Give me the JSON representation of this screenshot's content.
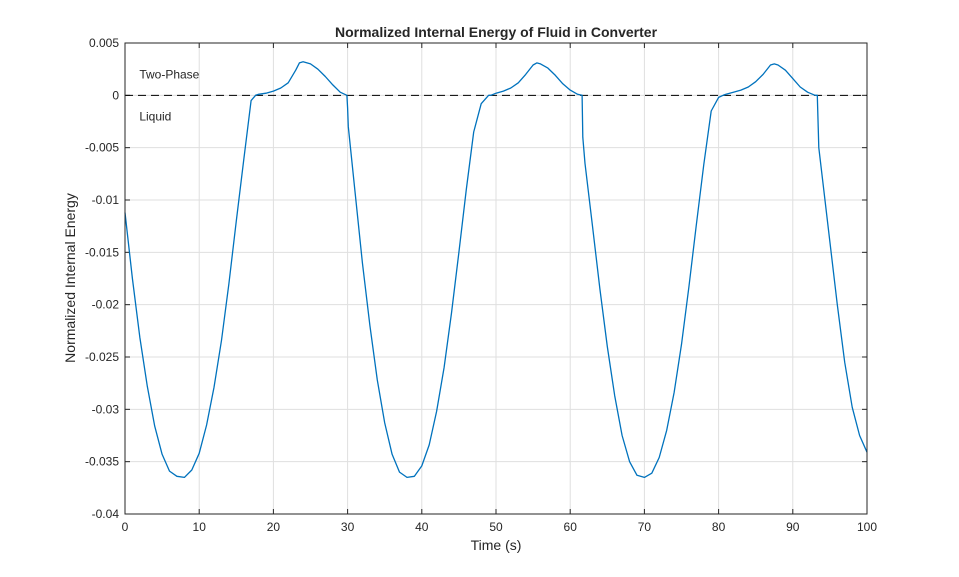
{
  "chart_data": {
    "type": "line",
    "title": "Normalized Internal Energy of Fluid in Converter",
    "xlabel": "Time (s)",
    "ylabel": "Normalized Internal Energy",
    "xlim": [
      0,
      100
    ],
    "ylim": [
      -0.04,
      0.005
    ],
    "xticks": [
      0,
      10,
      20,
      30,
      40,
      50,
      60,
      70,
      80,
      90,
      100
    ],
    "xtick_labels": [
      "0",
      "10",
      "20",
      "30",
      "40",
      "50",
      "60",
      "70",
      "80",
      "90",
      "100"
    ],
    "yticks": [
      0.005,
      0,
      -0.005,
      -0.01,
      -0.015,
      -0.02,
      -0.025,
      -0.03,
      -0.035,
      -0.04
    ],
    "ytick_labels": [
      "0.005",
      "0",
      "-0.005",
      "-0.01",
      "-0.015",
      "-0.02",
      "-0.025",
      "-0.03",
      "-0.035",
      "-0.04"
    ],
    "grid": true,
    "annotations": [
      {
        "text": "Two-Phase",
        "x": 2,
        "y": 0.002
      },
      {
        "text": "Liquid",
        "x": 2,
        "y": -0.002
      }
    ],
    "reference_line": {
      "y": 0,
      "style": "dashed",
      "color": "#000000"
    },
    "series": [
      {
        "color": "#0072BD",
        "x": [
          0,
          1,
          2,
          3,
          4,
          5,
          6,
          7,
          8,
          9,
          10,
          11,
          12,
          13,
          14,
          15,
          16,
          17,
          17.6,
          18,
          19,
          20,
          21,
          22,
          23,
          23.5,
          24,
          25,
          26,
          27,
          28,
          29,
          29.9,
          30,
          30.1,
          31,
          32,
          33,
          34,
          35,
          36,
          37,
          38,
          39,
          40,
          41,
          42,
          43,
          44,
          45,
          46,
          47,
          48,
          49,
          49.3,
          50,
          51,
          52,
          53,
          54,
          55,
          55.5,
          56,
          57,
          58,
          59,
          60,
          61,
          61.6,
          61.7,
          62,
          63,
          64,
          65,
          66,
          67,
          68,
          69,
          70,
          71,
          72,
          73,
          74,
          75,
          76,
          77,
          78,
          79,
          80,
          80.6,
          81,
          82,
          83,
          84,
          85,
          86,
          87,
          87.5,
          88,
          89,
          90,
          91,
          92,
          93,
          93.3,
          93.5,
          94,
          95,
          96,
          97,
          98,
          99,
          100
        ],
        "y": [
          -0.0112,
          -0.0175,
          -0.0231,
          -0.0278,
          -0.0316,
          -0.0343,
          -0.0359,
          -0.0364,
          -0.0365,
          -0.0358,
          -0.0342,
          -0.0315,
          -0.0279,
          -0.0234,
          -0.018,
          -0.012,
          -0.0062,
          -0.0005,
          0.0,
          0.0001,
          0.0002,
          0.0004,
          0.0007,
          0.0012,
          0.0024,
          0.0031,
          0.0032,
          0.003,
          0.0025,
          0.0018,
          0.001,
          0.0003,
          0.0,
          -0.0012,
          -0.003,
          -0.0092,
          -0.016,
          -0.022,
          -0.0272,
          -0.0313,
          -0.0343,
          -0.036,
          -0.0365,
          -0.0364,
          -0.0354,
          -0.0334,
          -0.0302,
          -0.026,
          -0.0208,
          -0.015,
          -0.009,
          -0.0035,
          -0.0008,
          0.0,
          0.0,
          0.0002,
          0.0004,
          0.0007,
          0.0012,
          0.002,
          0.0029,
          0.0031,
          0.003,
          0.0026,
          0.0019,
          0.0011,
          0.0005,
          0.0001,
          0.0,
          -0.004,
          -0.0065,
          -0.0125,
          -0.0185,
          -0.024,
          -0.0287,
          -0.0325,
          -0.035,
          -0.0363,
          -0.0365,
          -0.0361,
          -0.0346,
          -0.032,
          -0.0284,
          -0.0238,
          -0.0183,
          -0.0124,
          -0.0066,
          -0.0015,
          -0.0002,
          0.0,
          0.0001,
          0.0003,
          0.0005,
          0.0008,
          0.0013,
          0.002,
          0.0029,
          0.003,
          0.0029,
          0.0024,
          0.0016,
          0.0008,
          0.0003,
          0.0,
          0.0,
          -0.005,
          -0.008,
          -0.014,
          -0.02,
          -0.0255,
          -0.0298,
          -0.0325,
          -0.0341
        ]
      }
    ]
  }
}
